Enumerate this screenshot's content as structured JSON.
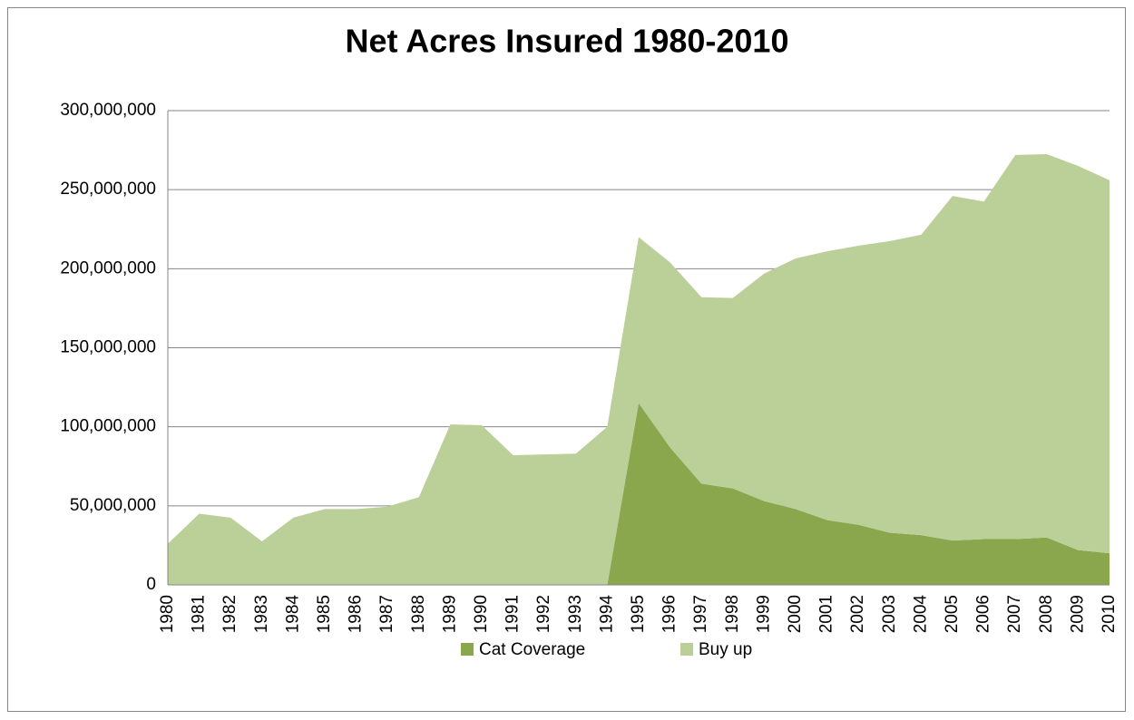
{
  "chart_data": {
    "type": "stacked_area",
    "title": "Net Acres Insured 1980-2010",
    "categories": [
      "1980",
      "1981",
      "1982",
      "1983",
      "1984",
      "1985",
      "1986",
      "1987",
      "1988",
      "1989",
      "1990",
      "1991",
      "1992",
      "1993",
      "1994",
      "1995",
      "1996",
      "1997",
      "1998",
      "1999",
      "2000",
      "2001",
      "2002",
      "2003",
      "2004",
      "2005",
      "2006",
      "2007",
      "2008",
      "2009",
      "2010"
    ],
    "series": [
      {
        "name": "Cat Coverage",
        "color": "#8aa74e",
        "values": [
          0,
          0,
          0,
          0,
          0,
          0,
          0,
          0,
          0,
          0,
          0,
          0,
          0,
          0,
          0,
          115000000,
          87000000,
          64000000,
          61000000,
          53000000,
          48000000,
          41000000,
          38000000,
          33000000,
          31500000,
          28000000,
          29000000,
          29000000,
          30000000,
          22000000,
          20000000
        ]
      },
      {
        "name": "Buy up",
        "color": "#bbcf98",
        "values": [
          26000000,
          45000000,
          42500000,
          27500000,
          42500000,
          48000000,
          48000000,
          49500000,
          55500000,
          101500000,
          101000000,
          82000000,
          82500000,
          83000000,
          100000000,
          105000000,
          117000000,
          118000000,
          120500000,
          144000000,
          158500000,
          170000000,
          176500000,
          184500000,
          190000000,
          218000000,
          213500000,
          243000000,
          242500000,
          243000000,
          236000000
        ]
      }
    ],
    "ylim": [
      0,
      300000000
    ],
    "yticks": [
      0,
      {
        "value": 50000000,
        "label": "50,000,000"
      },
      {
        "value": 100000000,
        "label": "100,000,000"
      },
      {
        "value": 150000000,
        "label": "150,000,000"
      },
      {
        "value": 200000000,
        "label": "200,000,000"
      },
      {
        "value": 250000000,
        "label": "250,000,000"
      },
      {
        "value": 300000000,
        "label": "300,000,000"
      }
    ],
    "grid": true
  }
}
